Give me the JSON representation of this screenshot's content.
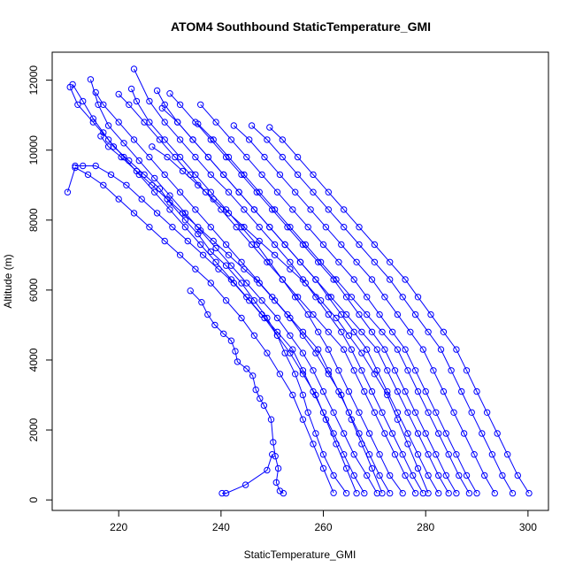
{
  "chart_data": {
    "type": "line",
    "title": "ATOM4 Southbound StaticTemperature_GMI",
    "xlabel": "StaticTemperature_GMI",
    "ylabel": "Altitude (m)",
    "xlim": [
      207,
      304
    ],
    "ylim": [
      -300,
      12800
    ],
    "x_ticks": [
      220,
      240,
      260,
      280,
      300
    ],
    "y_ticks": [
      0,
      2000,
      4000,
      6000,
      8000,
      10000,
      12000
    ],
    "marker": "open-circle",
    "line_style": "solid",
    "grid": false,
    "legend": "none",
    "colors": {
      "series": "#0000ff",
      "axis": "#000000",
      "background": "#ffffff"
    },
    "series": [
      {
        "x": [
          240.2,
          241.0,
          244.8,
          249.0,
          250.0
        ],
        "y": [
          190,
          190,
          430,
          850,
          1300
        ]
      },
      {
        "x": [
          252.2,
          251.5,
          250.8,
          251.2,
          250.6,
          250.2,
          249.8,
          248.4,
          247.6,
          246.8,
          246.2,
          245.0,
          243.2,
          242.8,
          242.0,
          240.5,
          238.8,
          237.4,
          236.2,
          234.0
        ],
        "y": [
          190,
          260,
          500,
          900,
          1250,
          1650,
          2300,
          2700,
          2900,
          3150,
          3550,
          3750,
          3950,
          4250,
          4550,
          4750,
          5000,
          5300,
          5650,
          5980
        ]
      },
      {
        "x": [
          264.5,
          262.0,
          260.0,
          258.5,
          257.0,
          256.0,
          254.5,
          252.5,
          251.0,
          249.0,
          246.5,
          244.0,
          241.0,
          238.0,
          235.5,
          233.0,
          230.0,
          228.0,
          225.0,
          222.0,
          219.0,
          217.0,
          215.0,
          213.0,
          211.0
        ],
        "y": [
          190,
          700,
          1300,
          1900,
          2500,
          3000,
          3600,
          4200,
          4700,
          5200,
          5700,
          6200,
          6700,
          7100,
          7600,
          8000,
          8500,
          8900,
          9300,
          9700,
          10100,
          10500,
          10900,
          11400,
          11880
        ]
      },
      {
        "x": [
          270.5,
          268.5,
          266.0,
          264.0,
          262.0,
          260.0,
          258.0,
          256.0,
          253.5,
          251.0,
          248.0,
          245.0,
          242.0,
          239.0,
          236.0,
          233.0,
          230.0,
          227.0,
          224.0,
          221.0,
          218.0,
          216.0,
          214.5
        ],
        "y": [
          190,
          700,
          1300,
          1900,
          2500,
          3100,
          3700,
          4200,
          4700,
          5200,
          5700,
          6200,
          6700,
          7200,
          7700,
          8200,
          8700,
          9200,
          9700,
          10200,
          10700,
          11300,
          12020
        ]
      },
      {
        "x": [
          275.5,
          273.0,
          271.0,
          269.0,
          267.0,
          265.0,
          263.0,
          261.0,
          259.0,
          257.0,
          254.5,
          252.0,
          249.5,
          247.0,
          244.0,
          241.0,
          238.0,
          235.0,
          232.0,
          229.0,
          226.0,
          223.5,
          222.5
        ],
        "y": [
          190,
          700,
          1300,
          1900,
          2500,
          3100,
          3700,
          4300,
          4800,
          5300,
          5800,
          6300,
          6800,
          7300,
          7800,
          8300,
          8800,
          9300,
          9800,
          10300,
          10800,
          11400,
          11750
        ]
      },
      {
        "x": [
          279.5,
          277.5,
          275.5,
          273.5,
          271.5,
          269.5,
          267.5,
          265.5,
          263.5,
          261.0,
          258.5,
          256.0,
          253.5,
          250.5,
          247.5,
          244.5,
          241.5,
          238.0,
          235.0,
          232.0,
          229.0,
          226.0,
          223.0
        ],
        "y": [
          190,
          700,
          1300,
          1900,
          2500,
          3100,
          3700,
          4300,
          4800,
          5300,
          5800,
          6300,
          6800,
          7300,
          7800,
          8300,
          8800,
          9300,
          9800,
          10300,
          10800,
          11400,
          12320
        ]
      },
      {
        "x": [
          282.5,
          280.5,
          278.5,
          276.5,
          274.5,
          272.5,
          270.5,
          268.5,
          266.0,
          263.5,
          261.0,
          258.5,
          255.5,
          252.5,
          249.5,
          246.5,
          243.5,
          240.5,
          237.5,
          234.5,
          231.5,
          229.0,
          227.5
        ],
        "y": [
          190,
          700,
          1300,
          1900,
          2500,
          3100,
          3700,
          4300,
          4800,
          5300,
          5800,
          6300,
          6800,
          7300,
          7800,
          8300,
          8800,
          9300,
          9800,
          10300,
          10800,
          11300,
          11700
        ]
      },
      {
        "x": [
          286.0,
          284.0,
          282.0,
          280.0,
          278.0,
          276.0,
          274.0,
          272.0,
          269.5,
          267.0,
          264.5,
          262.0,
          259.0,
          256.0,
          253.0,
          250.0,
          247.0,
          244.0,
          241.0,
          238.0,
          235.0,
          232.0,
          230.0
        ],
        "y": [
          190,
          700,
          1300,
          1900,
          2500,
          3100,
          3700,
          4300,
          4800,
          5300,
          5800,
          6300,
          6800,
          7300,
          7800,
          8300,
          8800,
          9300,
          9800,
          10300,
          10800,
          11300,
          11620
        ]
      },
      {
        "x": [
          290.0,
          288.0,
          286.0,
          284.0,
          282.0,
          280.0,
          278.0,
          276.0,
          273.5,
          271.0,
          268.5,
          266.0,
          263.0,
          260.0,
          257.0,
          254.0,
          251.0,
          248.0,
          245.0,
          242.0,
          239.0,
          236.0
        ],
        "y": [
          190,
          700,
          1300,
          1900,
          2500,
          3100,
          3700,
          4300,
          4800,
          5300,
          5800,
          6300,
          6800,
          7300,
          7800,
          8300,
          8800,
          9300,
          9800,
          10300,
          10800,
          11300
        ]
      },
      {
        "x": [
          293.5,
          291.5,
          289.5,
          287.5,
          285.5,
          283.5,
          281.5,
          279.5,
          277.0,
          274.5,
          272.0,
          269.5,
          266.5,
          263.5,
          260.5,
          257.5,
          254.5,
          251.5,
          248.5,
          245.5,
          242.5
        ],
        "y": [
          190,
          700,
          1300,
          1900,
          2500,
          3100,
          3700,
          4300,
          4800,
          5300,
          5800,
          6300,
          6800,
          7300,
          7800,
          8300,
          8800,
          9300,
          9800,
          10300,
          10700
        ]
      },
      {
        "x": [
          297.0,
          295.0,
          293.0,
          291.0,
          289.0,
          287.0,
          285.0,
          283.0,
          280.5,
          278.0,
          275.5,
          273.0,
          270.0,
          267.0,
          264.0,
          261.0,
          258.0,
          255.0,
          252.0,
          249.0,
          246.0
        ],
        "y": [
          190,
          700,
          1300,
          1900,
          2500,
          3100,
          3700,
          4300,
          4800,
          5300,
          5800,
          6300,
          6800,
          7300,
          7800,
          8300,
          8800,
          9300,
          9800,
          10300,
          10700
        ]
      },
      {
        "x": [
          300.2,
          298.0,
          296.0,
          294.0,
          292.0,
          290.0,
          288.0,
          286.0,
          283.5,
          281.0,
          278.5,
          276.0,
          273.0,
          270.0,
          267.0,
          264.0,
          261.0,
          258.0,
          255.0,
          252.0,
          249.5
        ],
        "y": [
          190,
          700,
          1300,
          1900,
          2500,
          3100,
          3700,
          4300,
          4800,
          5300,
          5800,
          6300,
          6800,
          7300,
          7800,
          8300,
          8800,
          9300,
          9800,
          10300,
          10650
        ]
      },
      {
        "x": [
          268.0,
          266.0,
          264.0,
          262.0,
          260.0,
          258.0,
          256.0,
          254.0,
          251.0,
          248.0,
          245.0,
          242.0,
          239.0,
          236.0,
          233.0,
          230.0,
          227.0,
          224.0,
          221.0,
          218.0,
          215.0,
          212.0,
          210.5
        ],
        "y": [
          190,
          700,
          1300,
          1900,
          2500,
          3100,
          3700,
          4300,
          4800,
          5300,
          5800,
          6300,
          6800,
          7300,
          7800,
          8300,
          8800,
          9300,
          9800,
          10300,
          10800,
          11300,
          11800
        ]
      },
      {
        "x": [
          273.0,
          271.0,
          269.0,
          267.0,
          265.0,
          263.0,
          261.0,
          259.0,
          256.0,
          253.0,
          250.0,
          247.0,
          244.0,
          241.0,
          238.0,
          235.0,
          232.0,
          229.0,
          226.0,
          223.0,
          220.0,
          217.0,
          215.5
        ],
        "y": [
          190,
          700,
          1300,
          1900,
          2500,
          3100,
          3700,
          4300,
          4800,
          5300,
          5800,
          6300,
          6800,
          7300,
          7800,
          8300,
          8800,
          9300,
          9800,
          10300,
          10800,
          11300,
          11650
        ]
      },
      {
        "x": [
          278.0,
          276.0,
          274.0,
          272.0,
          270.0,
          268.0,
          266.0,
          264.0,
          261.0,
          258.0,
          255.0,
          252.0,
          249.0,
          246.0,
          243.0,
          240.0,
          237.0,
          234.0,
          231.0,
          228.0,
          225.0,
          222.0,
          220.0
        ],
        "y": [
          190,
          700,
          1300,
          1900,
          2500,
          3100,
          3700,
          4300,
          4800,
          5300,
          5800,
          6300,
          6800,
          7300,
          7800,
          8300,
          8800,
          9300,
          9800,
          10300,
          10800,
          11300,
          11600
        ]
      },
      {
        "x": [
          284.5,
          282.5,
          280.5,
          278.5,
          276.5,
          274.5,
          272.5,
          270.5,
          267.5,
          264.5,
          261.5,
          258.5,
          255.5,
          252.5,
          249.5,
          246.5,
          243.5,
          240.5,
          237.5,
          234.5,
          231.5,
          228.5
        ],
        "y": [
          190,
          700,
          1300,
          1900,
          2500,
          3100,
          3700,
          4300,
          4800,
          5300,
          5800,
          6300,
          6800,
          7300,
          7800,
          8300,
          8800,
          9300,
          9800,
          10300,
          10800,
          11200
        ]
      },
      {
        "x": [
          288.5,
          286.5,
          284.5,
          282.5,
          280.5,
          278.5,
          276.5,
          274.5,
          271.5,
          268.5,
          265.5,
          262.5,
          259.5,
          256.5,
          253.5,
          250.5,
          247.5,
          244.5,
          241.5,
          238.5,
          235.5
        ],
        "y": [
          190,
          700,
          1300,
          1900,
          2500,
          3100,
          3700,
          4300,
          4800,
          5300,
          5800,
          6300,
          6800,
          7300,
          7800,
          8300,
          8800,
          9300,
          9800,
          10300,
          10750
        ]
      },
      {
        "x": [
          262.0,
          260.0,
          258.0,
          256.0,
          254.0,
          251.5,
          249.0,
          246.5,
          244.0,
          241.0,
          238.0,
          235.0,
          232.0,
          229.0,
          226.0,
          223.0,
          220.0,
          217.0,
          214.0,
          211.5,
          210.0
        ],
        "y": [
          200,
          900,
          1600,
          2300,
          3000,
          3600,
          4200,
          4700,
          5200,
          5700,
          6200,
          6600,
          7000,
          7400,
          7800,
          8200,
          8600,
          9000,
          9300,
          9500,
          8800
        ]
      },
      {
        "x": [
          266.5,
          264.5,
          262.5,
          260.5,
          258.5,
          256.0,
          253.5,
          251.0,
          248.5,
          245.5,
          242.5,
          239.5,
          236.5,
          233.5,
          230.5,
          227.5,
          224.5,
          221.5,
          218.5,
          215.5,
          213.0,
          211.5
        ],
        "y": [
          190,
          900,
          1600,
          2300,
          3000,
          3600,
          4200,
          4700,
          5200,
          5700,
          6200,
          6600,
          7000,
          7400,
          7800,
          8200,
          8600,
          9000,
          9300,
          9550,
          9550,
          9550
        ]
      },
      {
        "x": [
          271.5,
          269.5,
          267.5,
          265.5,
          263.5,
          261.0,
          258.5,
          256.0,
          253.5,
          250.5,
          247.5,
          244.5,
          241.5,
          238.5,
          235.5,
          232.5,
          229.5,
          226.5,
          223.5,
          220.5,
          218.0,
          216.5
        ],
        "y": [
          190,
          900,
          1600,
          2300,
          3000,
          3600,
          4200,
          4700,
          5200,
          5700,
          6200,
          6600,
          7000,
          7400,
          7800,
          8200,
          8600,
          9000,
          9400,
          9800,
          10100,
          10400
        ]
      },
      {
        "x": [
          280.5,
          278.5,
          276.5,
          274.5,
          272.5,
          270.0,
          267.5,
          265.0,
          262.5,
          259.5,
          256.5,
          253.5,
          250.5,
          247.5,
          244.5,
          241.5,
          238.5,
          235.5,
          232.5,
          229.5,
          226.5
        ],
        "y": [
          190,
          900,
          1600,
          2300,
          3000,
          3600,
          4200,
          4700,
          5200,
          5700,
          6200,
          6600,
          7000,
          7400,
          7800,
          8200,
          8600,
          9000,
          9400,
          9800,
          10100
        ]
      }
    ]
  }
}
